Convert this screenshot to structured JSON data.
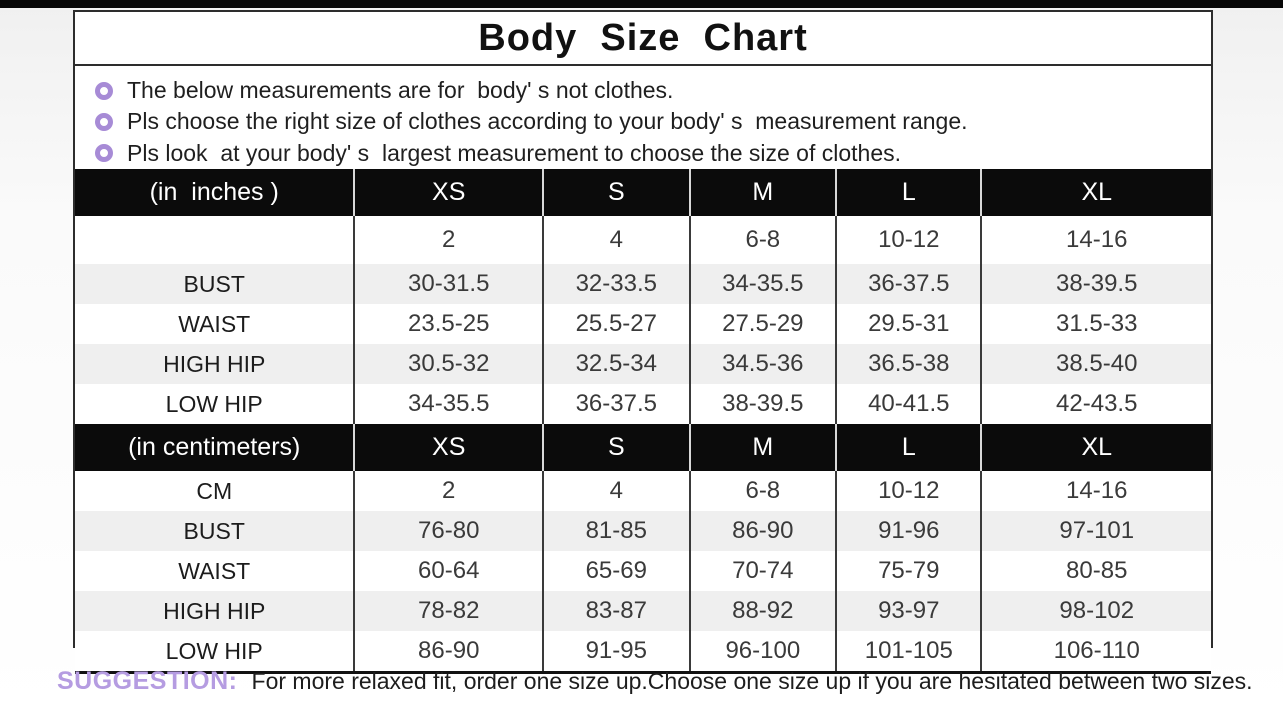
{
  "page_title": "Body  Size  Chart",
  "notes": [
    "The below measurements are for  body' s not clothes.",
    "Pls choose the right size of clothes according to your body' s  measurement range.",
    "Pls look  at your body' s  largest measurement to choose the size of clothes."
  ],
  "chart_data": {
    "type": "table",
    "title": "Body  Size  Chart",
    "sections": [
      {
        "unit_label": "(in  inches )",
        "header": [
          "(in  inches )",
          "XS",
          "S",
          "M",
          "L",
          "XL"
        ],
        "rows": [
          [
            "",
            "2",
            "4",
            "6-8",
            "10-12",
            "14-16"
          ],
          [
            "BUST",
            "30-31.5",
            "32-33.5",
            "34-35.5",
            "36-37.5",
            "38-39.5"
          ],
          [
            "WAIST",
            "23.5-25",
            "25.5-27",
            "27.5-29",
            "29.5-31",
            "31.5-33"
          ],
          [
            "HIGH HIP",
            "30.5-32",
            "32.5-34",
            "34.5-36",
            "36.5-38",
            "38.5-40"
          ],
          [
            "LOW HIP",
            "34-35.5",
            "36-37.5",
            "38-39.5",
            "40-41.5",
            "42-43.5"
          ]
        ]
      },
      {
        "unit_label": "(in centimeters)",
        "header": [
          "(in centimeters)",
          "XS",
          "S",
          "M",
          "L",
          "XL"
        ],
        "rows": [
          [
            "CM",
            "2",
            "4",
            "6-8",
            "10-12",
            "14-16"
          ],
          [
            "BUST",
            "76-80",
            "81-85",
            "86-90",
            "91-96",
            "97-101"
          ],
          [
            "WAIST",
            "60-64",
            "65-69",
            "70-74",
            "75-79",
            "80-85"
          ],
          [
            "HIGH HIP",
            "78-82",
            "83-87",
            "88-92",
            "93-97",
            "98-102"
          ],
          [
            "LOW HIP",
            "86-90",
            "91-95",
            "96-100",
            "101-105",
            "106-110"
          ]
        ]
      }
    ]
  },
  "footer": {
    "suggestion_label": "SUGGESTION:",
    "suggestion_text": "For more relaxed fit, order one size up.Choose one size up if you are hesitated between two sizes."
  },
  "colors": {
    "accent_purple": "#a78bd6",
    "suggestion_purple": "#b59ce1",
    "header_bg": "#0b0b0b",
    "stripe_gray": "#efefef",
    "top_strip": "#060606"
  }
}
